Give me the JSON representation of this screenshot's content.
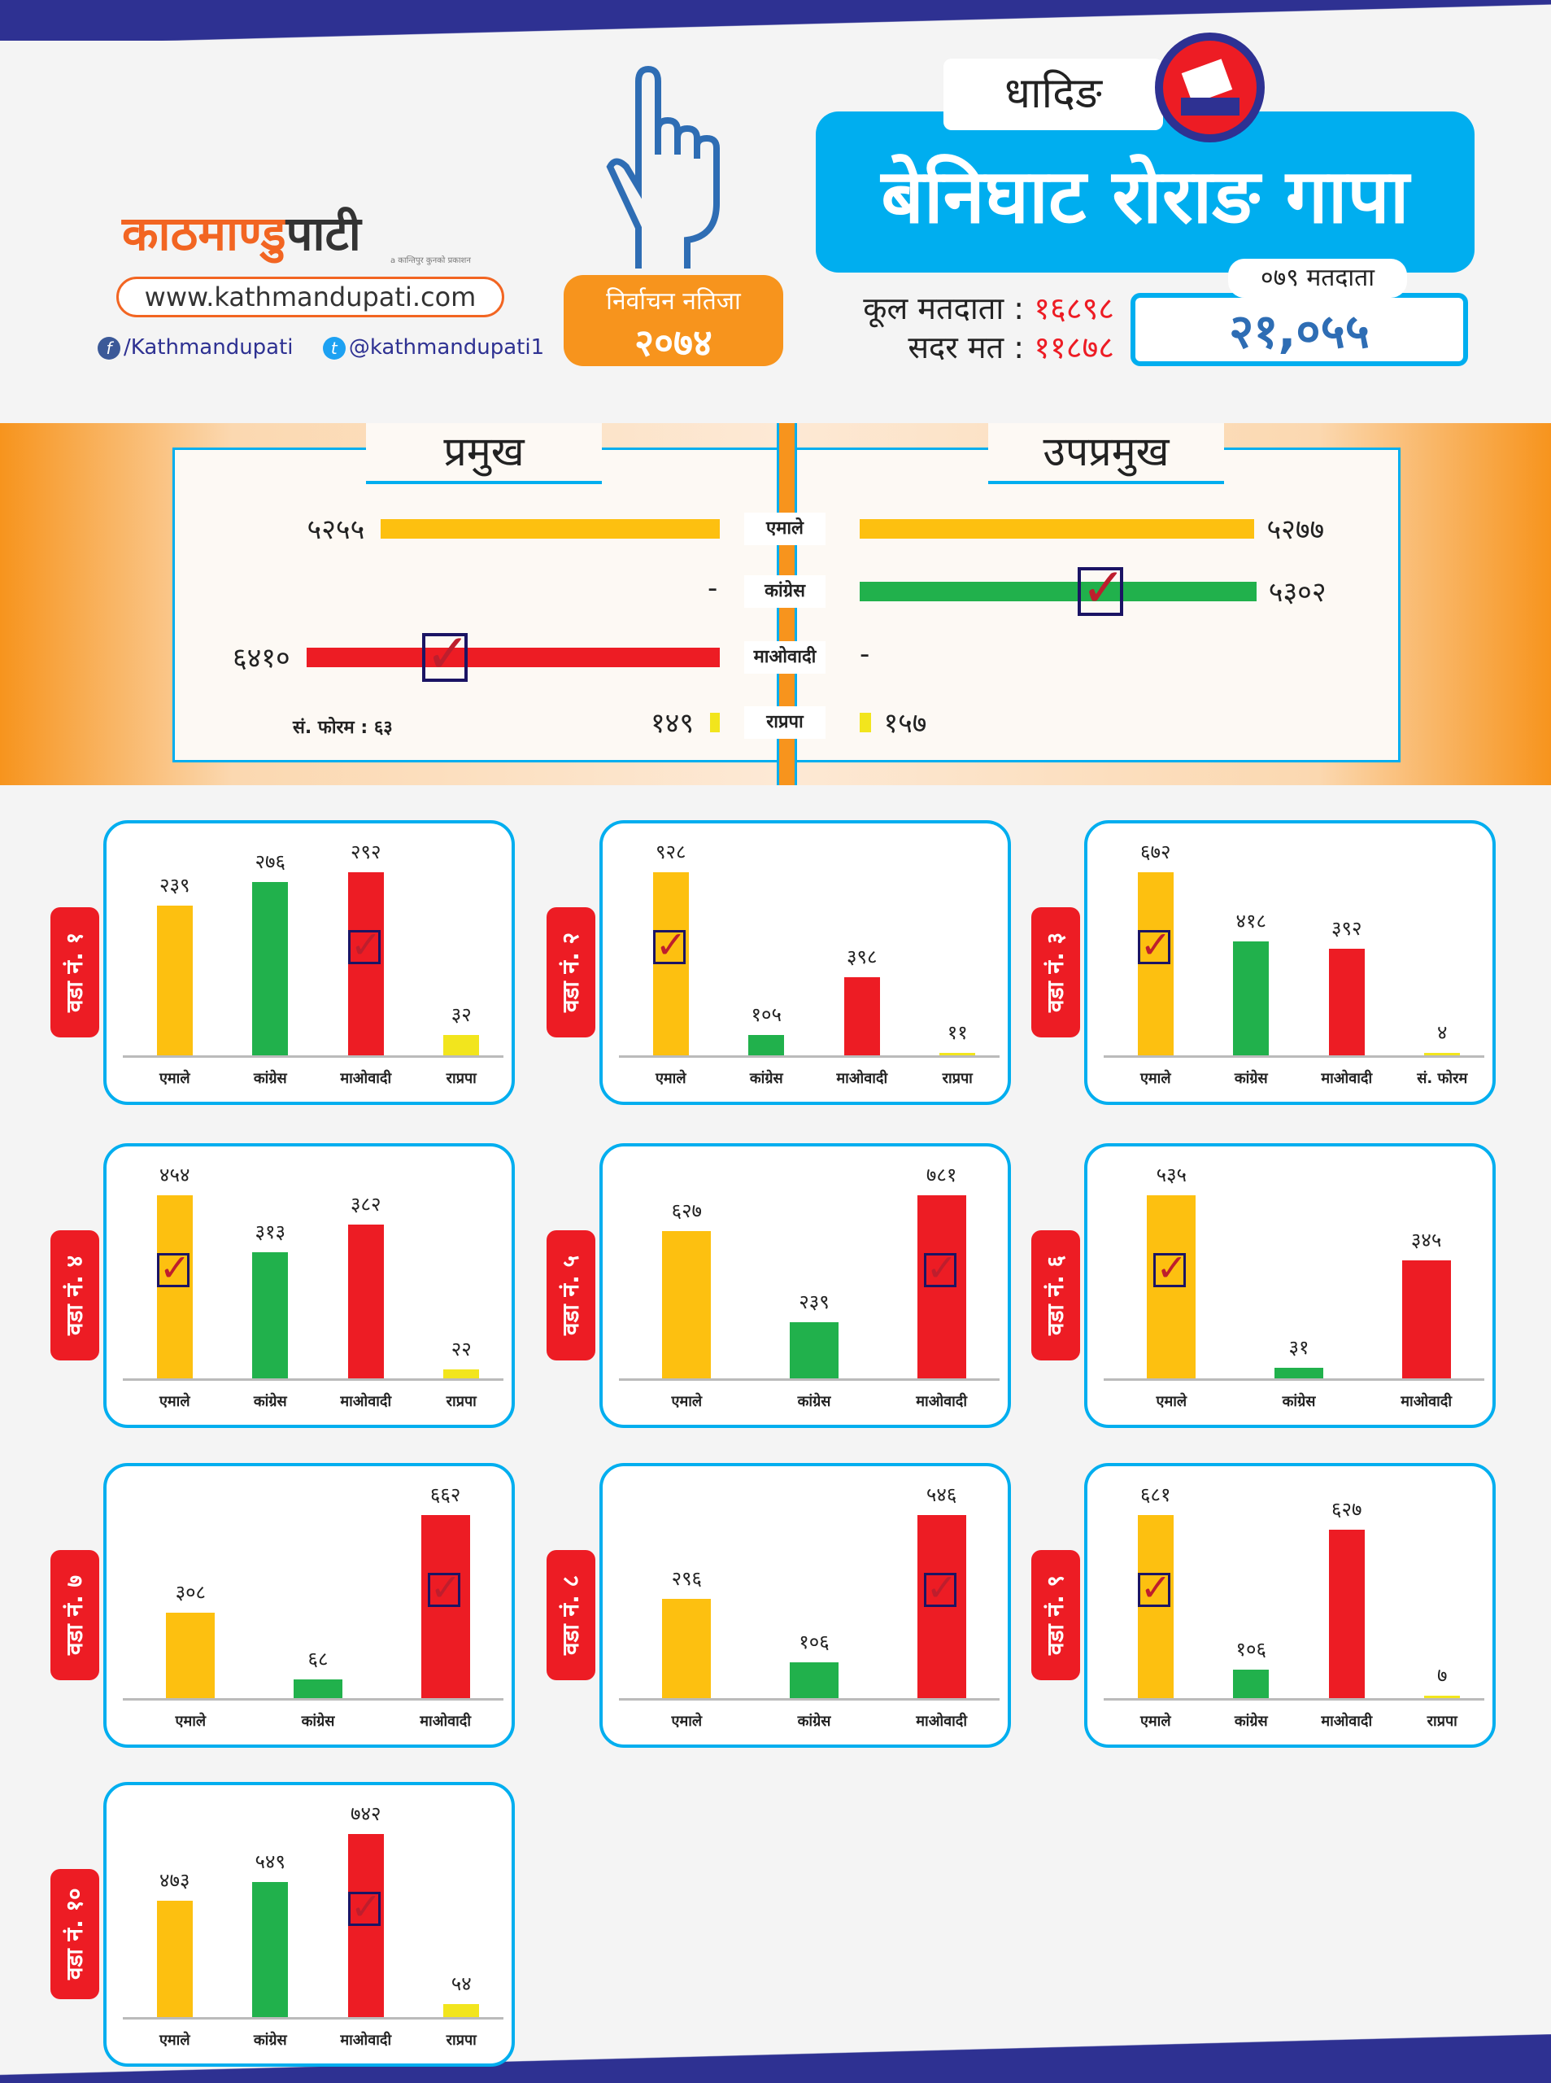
{
  "header": {
    "logo": {
      "text_part1": "काठमाण्डु",
      "text_part2": "पाटी",
      "tagline": "a कान्तिपुर कुनको प्रकाशन"
    },
    "website": "www.kathmandupati.com",
    "facebook": "/Kathmandupati",
    "twitter": "@kathmandupati1",
    "result_label": "निर्वाचन नतिजा",
    "result_year": "२०७४",
    "district": "धादिङ",
    "municipality": "बेनिघाट रोराङ गापा",
    "total_voters_label": "कूल मतदाता :",
    "total_voters": "१६८९८",
    "valid_votes_label": "सदर मत :",
    "valid_votes": "११८७८",
    "voters_079_label": "०७९ मतदाता",
    "voters_079": "२१,०५५"
  },
  "colors": {
    "uml": "#fdc010",
    "congress": "#21b14c",
    "maoist": "#ed1c24",
    "rpp": "#f2e51d",
    "accent": "#00aeef",
    "orange": "#f7941d"
  },
  "chart_data": [
    {
      "type": "bar",
      "title": "प्रमुख",
      "orientation": "horizontal",
      "categories": [
        "एमाले",
        "कांग्रेस",
        "माओवादी",
        "राप्रपा"
      ],
      "values": [
        5255,
        null,
        6410,
        149
      ],
      "labels": [
        "५२५५",
        "-",
        "६४१०",
        "१४९"
      ],
      "winner": "माओवादी",
      "note": "सं. फोरम : ६३"
    },
    {
      "type": "bar",
      "title": "उपप्रमुख",
      "orientation": "horizontal",
      "categories": [
        "एमाले",
        "कांग्रेस",
        "माओवादी",
        "राप्रपा"
      ],
      "values": [
        5277,
        5302,
        null,
        157
      ],
      "labels": [
        "५२७७",
        "५३०२",
        "-",
        "१५७"
      ],
      "winner": "कांग्रेस"
    },
    {
      "type": "bar",
      "title": "वडा नं. १",
      "categories": [
        "एमाले",
        "कांग्रेस",
        "माओवादी",
        "राप्रपा"
      ],
      "values": [
        239,
        276,
        292,
        32
      ],
      "labels": [
        "२३९",
        "२७६",
        "२९२",
        "३२"
      ],
      "winner": 2
    },
    {
      "type": "bar",
      "title": "वडा नं. २",
      "categories": [
        "एमाले",
        "कांग्रेस",
        "माओवादी",
        "राप्रपा"
      ],
      "values": [
        928,
        105,
        398,
        11
      ],
      "labels": [
        "९२८",
        "१०५",
        "३९८",
        "११"
      ],
      "winner": 0
    },
    {
      "type": "bar",
      "title": "वडा नं. ३",
      "categories": [
        "एमाले",
        "कांग्रेस",
        "माओवादी",
        "सं. फोरम"
      ],
      "values": [
        672,
        418,
        392,
        4
      ],
      "labels": [
        "६७२",
        "४१८",
        "३९२",
        "४"
      ],
      "winner": 0
    },
    {
      "type": "bar",
      "title": "वडा नं. ४",
      "categories": [
        "एमाले",
        "कांग्रेस",
        "माओवादी",
        "राप्रपा"
      ],
      "values": [
        454,
        313,
        382,
        22
      ],
      "labels": [
        "४५४",
        "३१३",
        "३८२",
        "२२"
      ],
      "winner": 0
    },
    {
      "type": "bar",
      "title": "वडा नं. ५",
      "categories": [
        "एमाले",
        "कांग्रेस",
        "माओवादी"
      ],
      "values": [
        627,
        239,
        781
      ],
      "labels": [
        "६२७",
        "२३९",
        "७८१"
      ],
      "winner": 2
    },
    {
      "type": "bar",
      "title": "वडा नं. ६",
      "categories": [
        "एमाले",
        "कांग्रेस",
        "माओवादी"
      ],
      "values": [
        535,
        31,
        345
      ],
      "labels": [
        "५३५",
        "३१",
        "३४५"
      ],
      "winner": 0
    },
    {
      "type": "bar",
      "title": "वडा नं. ७",
      "categories": [
        "एमाले",
        "कांग्रेस",
        "माओवादी"
      ],
      "values": [
        308,
        68,
        662
      ],
      "labels": [
        "३०८",
        "६८",
        "६६२"
      ],
      "winner": 2
    },
    {
      "type": "bar",
      "title": "वडा नं. ८",
      "categories": [
        "एमाले",
        "कांग्रेस",
        "माओवादी"
      ],
      "values": [
        296,
        106,
        546
      ],
      "labels": [
        "२९६",
        "१०६",
        "५४६"
      ],
      "winner": 2
    },
    {
      "type": "bar",
      "title": "वडा नं. ९",
      "categories": [
        "एमाले",
        "कांग्रेस",
        "माओवादी",
        "राप्रपा"
      ],
      "values": [
        681,
        106,
        627,
        7
      ],
      "labels": [
        "६८१",
        "१०६",
        "६२७",
        "७"
      ],
      "winner": 0
    },
    {
      "type": "bar",
      "title": "वडा नं. १०",
      "categories": [
        "एमाले",
        "कांग्रेस",
        "माओवादी",
        "राप्रपा"
      ],
      "values": [
        473,
        549,
        742,
        54
      ],
      "labels": [
        "४७३",
        "५४९",
        "७४२",
        "५४"
      ],
      "winner": 2
    }
  ]
}
